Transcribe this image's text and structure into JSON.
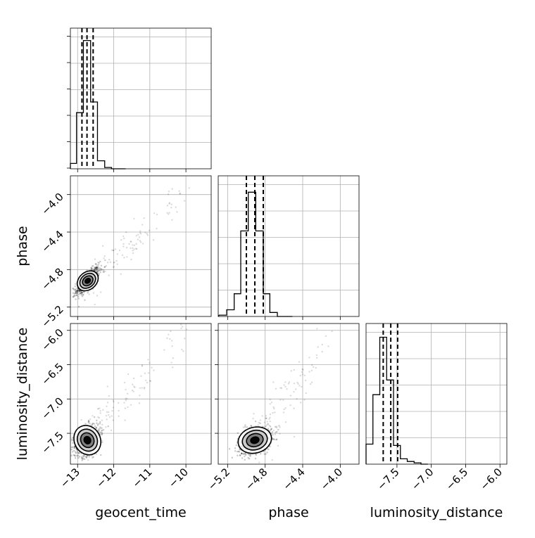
{
  "chart_data": {
    "type": "corner",
    "parameters": [
      "geocent_time",
      "phase",
      "luminosity_distance"
    ],
    "axes": {
      "geocent_time": {
        "range": [
          -13.2,
          -9.3
        ],
        "ticks": [
          -13,
          -12,
          -11,
          -10
        ],
        "tick_labels": [
          "−13",
          "−12",
          "−11",
          "−10"
        ]
      },
      "phase": {
        "range": [
          -5.3,
          -3.8
        ],
        "ticks": [
          -5.2,
          -4.8,
          -4.4,
          -4.0
        ],
        "tick_labels": [
          "−5.2",
          "−4.8",
          "−4.4",
          "−4.0"
        ]
      },
      "luminosity_distance": {
        "range": [
          -7.95,
          -5.9
        ],
        "ticks": [
          -7.5,
          -7.0,
          -6.5,
          -6.0
        ],
        "tick_labels": [
          "−7.5",
          "−7.0",
          "−6.5",
          "−6.0"
        ]
      }
    },
    "histograms": [
      {
        "param": "geocent_time",
        "bins": [
          -13.23,
          -13.03,
          -12.84,
          -12.64,
          -12.45,
          -12.25,
          -12.06,
          -11.86,
          -11.67
        ],
        "counts": [
          0.04,
          0.42,
          0.96,
          0.5,
          0.06,
          0.01,
          0.0,
          0.0
        ],
        "quantiles": [
          -12.88,
          -12.74,
          -12.57
        ]
      },
      {
        "param": "phase",
        "bins": [
          -5.29,
          -5.21,
          -5.13,
          -5.06,
          -4.98,
          -4.9,
          -4.82,
          -4.75,
          -4.67,
          -4.59,
          -4.51
        ],
        "counts": [
          0.01,
          0.05,
          0.17,
          0.64,
          0.93,
          0.64,
          0.17,
          0.03,
          0.0,
          0.0
        ],
        "quantiles": [
          -5.0,
          -4.91,
          -4.82
        ]
      },
      {
        "param": "luminosity_distance",
        "bins": [
          -7.96,
          -7.85,
          -7.75,
          -7.65,
          -7.55,
          -7.45,
          -7.35,
          -7.25,
          -7.15,
          -7.05
        ],
        "counts": [
          0.15,
          0.52,
          0.95,
          0.63,
          0.14,
          0.04,
          0.02,
          0.01,
          0.0
        ],
        "quantiles": [
          -7.7,
          -7.59,
          -7.49
        ]
      }
    ],
    "pairs": [
      {
        "x": "geocent_time",
        "y": "phase",
        "center": [
          -12.72,
          -4.92
        ],
        "spread": [
          0.16,
          0.07
        ],
        "correlation": 0.75,
        "tail_end": [
          -9.95,
          -4.0
        ],
        "contour_sigmas": [
          0.5,
          1.0,
          1.5,
          2.0
        ]
      },
      {
        "x": "geocent_time",
        "y": "luminosity_distance",
        "center": [
          -12.73,
          -7.6
        ],
        "spread": [
          0.18,
          0.12
        ],
        "correlation": 0.4,
        "tail_end": [
          -9.95,
          -5.95
        ],
        "contour_sigmas": [
          0.5,
          1.0,
          1.5,
          2.0
        ]
      },
      {
        "x": "phase",
        "y": "luminosity_distance",
        "center": [
          -4.91,
          -7.6
        ],
        "spread": [
          0.09,
          0.1
        ],
        "correlation": 0.35,
        "tail_end": [
          -4.1,
          -6.1
        ],
        "contour_sigmas": [
          0.5,
          1.0,
          1.5,
          2.0
        ]
      }
    ],
    "xlabels": [
      "geocent_time",
      "phase",
      "luminosity_distance"
    ],
    "ylabels": [
      "",
      "phase",
      "luminosity_distance"
    ],
    "grid": true
  }
}
